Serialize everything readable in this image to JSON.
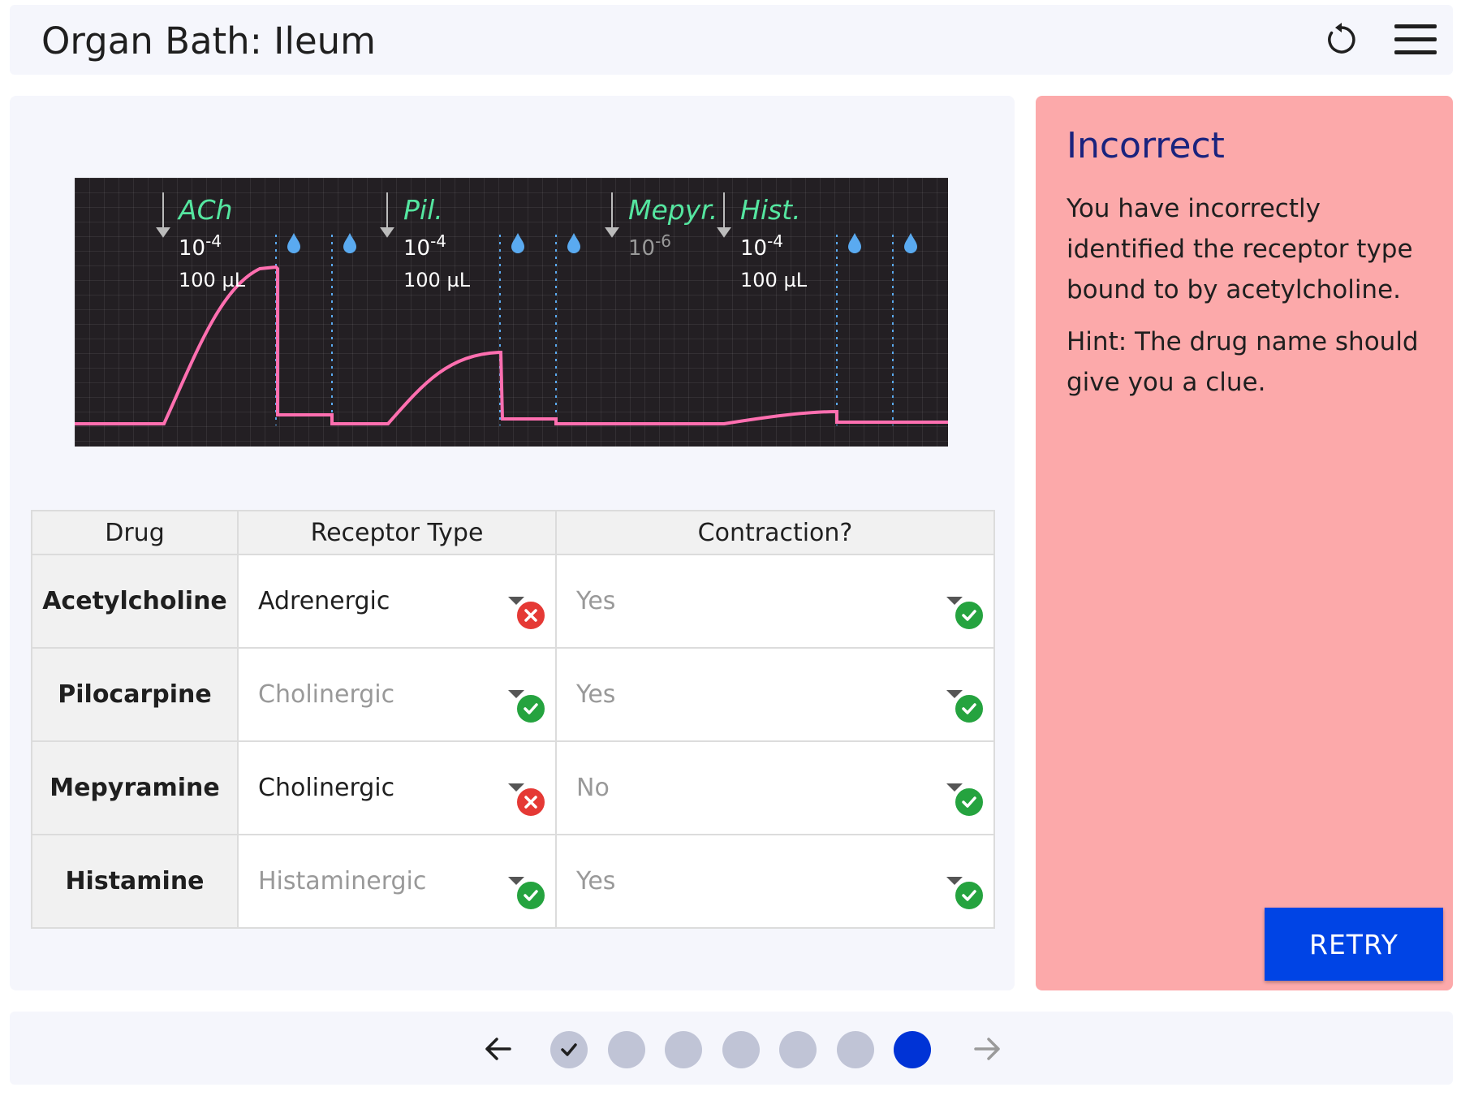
{
  "header": {
    "title": "Organ Bath: Ileum"
  },
  "icons": {
    "reset": "reset-icon",
    "menu": "hamburger-menu-icon"
  },
  "trace": {
    "markers": [
      {
        "drug": "ACh",
        "exponent": "-4",
        "base": "10",
        "volume": "100 µL",
        "dimmed": false
      },
      {
        "drug": "Pil.",
        "exponent": "-4",
        "base": "10",
        "volume": "100 µL",
        "dimmed": false
      },
      {
        "drug": "Mepyr.",
        "exponent": "-6",
        "base": "10",
        "volume": "",
        "dimmed": true
      },
      {
        "drug": "Hist.",
        "exponent": "-4",
        "base": "10",
        "volume": "100 µL",
        "dimmed": false
      }
    ],
    "trace_color": "#ff6fb0",
    "label_color": "#55e6a0",
    "washout_color": "#5aaaf0"
  },
  "table": {
    "headers": {
      "drug": "Drug",
      "receptor": "Receptor Type",
      "contraction": "Contraction?"
    },
    "rows": [
      {
        "drug": "Acetylcholine",
        "receptor": "Adrenergic",
        "receptor_status": "incorrect",
        "receptor_muted": false,
        "contraction": "Yes",
        "contraction_status": "correct",
        "contraction_muted": true
      },
      {
        "drug": "Pilocarpine",
        "receptor": "Cholinergic",
        "receptor_status": "correct",
        "receptor_muted": true,
        "contraction": "Yes",
        "contraction_status": "correct",
        "contraction_muted": true
      },
      {
        "drug": "Mepyramine",
        "receptor": "Cholinergic",
        "receptor_status": "incorrect",
        "receptor_muted": false,
        "contraction": "No",
        "contraction_status": "correct",
        "contraction_muted": true
      },
      {
        "drug": "Histamine",
        "receptor": "Histaminergic",
        "receptor_status": "correct",
        "receptor_muted": true,
        "contraction": "Yes",
        "contraction_status": "correct",
        "contraction_muted": true
      }
    ]
  },
  "feedback": {
    "title": "Incorrect",
    "body": "You have incorrectly identified the receptor type bound to by acetylcholine.",
    "hint": "Hint: The drug name should give you a clue.",
    "retry_label": "RETRY",
    "background": "#fca9aa"
  },
  "pagination": {
    "total": 7,
    "current": 7,
    "completed": [
      1
    ],
    "active_color": "#0033d6"
  }
}
